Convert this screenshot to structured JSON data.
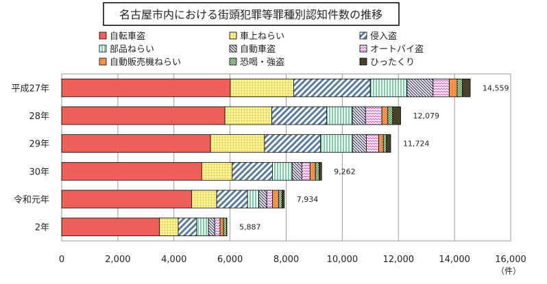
{
  "chart_data": {
    "type": "bar",
    "orientation": "horizontal",
    "stacked": true,
    "title": "名古屋市内における街頭犯罪等罪種別認知件数の推移",
    "xunit": "（件）",
    "xlim": [
      0,
      16000
    ],
    "xticks": [
      "0",
      "2,000",
      "4,000",
      "6,000",
      "8,000",
      "10,000",
      "12,000",
      "14,000",
      "16,000"
    ],
    "xtick_values": [
      0,
      2000,
      4000,
      6000,
      8000,
      10000,
      12000,
      14000,
      16000
    ],
    "grid": true,
    "legend_position": "top",
    "categories": [
      "平成27年",
      "28年",
      "29年",
      "30年",
      "令和元年",
      "2年"
    ],
    "totals": [
      14559,
      12079,
      11724,
      9262,
      7934,
      5887
    ],
    "total_labels": [
      "14,559",
      "12,079",
      "11,724",
      "9,262",
      "7,934",
      "5,887"
    ],
    "series": [
      {
        "name": "自転車盗",
        "color": "#f0605a",
        "pattern": "solid",
        "values": [
          6008,
          5816,
          5302,
          4990,
          4627,
          3488
        ]
      },
      {
        "name": "車上ねらい",
        "color": "#fff08a",
        "pattern": "grid",
        "values": [
          2258,
          1673,
          1925,
          1088,
          897,
          665
        ]
      },
      {
        "name": "侵入盗",
        "color": "#5a7a9a",
        "pattern": "diagonal",
        "values": [
          2731,
          1956,
          1996,
          1432,
          1099,
          655
        ]
      },
      {
        "name": "部品ねらい",
        "color": "#3a9a7a",
        "pattern": "vertical",
        "values": [
          1310,
          917,
          1149,
          705,
          403,
          424
        ]
      },
      {
        "name": "自動車盗",
        "color": "#3a3060",
        "pattern": "backslash",
        "values": [
          928,
          464,
          484,
          343,
          282,
          221
        ]
      },
      {
        "name": "オートバイ盗",
        "color": "#c060b0",
        "pattern": "zigzag",
        "values": [
          575,
          585,
          444,
          292,
          202,
          192
        ]
      },
      {
        "name": "自動販売機ねらい",
        "color": "#f09048",
        "pattern": "orange",
        "values": [
          282,
          211,
          161,
          192,
          221,
          121
        ]
      },
      {
        "name": "恐喝・強盗",
        "color": "#2a6a2a",
        "pattern": "check",
        "values": [
          191,
          172,
          111,
          131,
          121,
          111
        ]
      },
      {
        "name": "ひったくり",
        "color": "#4a4228",
        "pattern": "solid",
        "values": [
          276,
          285,
          152,
          89,
          82,
          10
        ]
      }
    ]
  }
}
